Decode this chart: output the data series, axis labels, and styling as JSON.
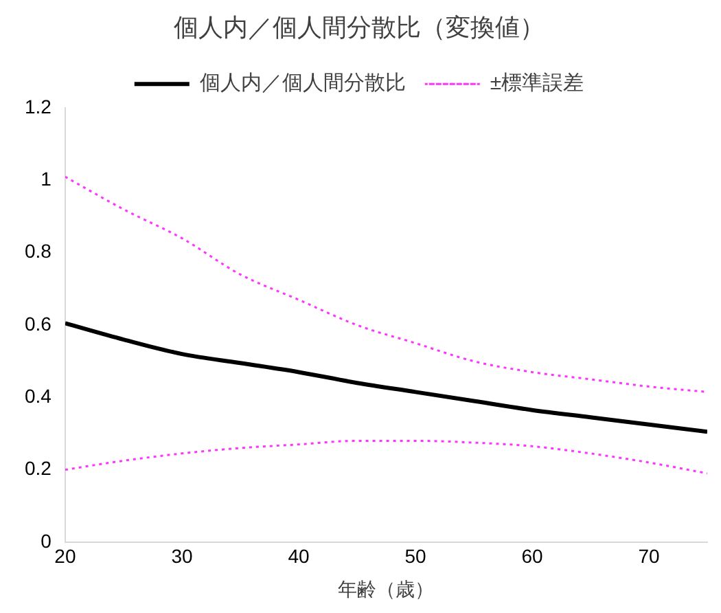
{
  "chart_data": {
    "type": "line",
    "title": "個人内／個人間分散比（変換値）",
    "xlabel": "年齢（歳）",
    "x": [
      20,
      25,
      30,
      35,
      40,
      45,
      50,
      55,
      60,
      65,
      70,
      75
    ],
    "series": [
      {
        "name": "個人内／個人間分散比",
        "color": "#000000",
        "line_style": "solid",
        "values": [
          0.605,
          0.56,
          0.52,
          0.495,
          0.47,
          0.44,
          0.415,
          0.39,
          0.365,
          0.345,
          0.325,
          0.305
        ]
      },
      {
        "name": "±標準誤差",
        "color": "#ff33ff",
        "line_style": "dotted",
        "values": [
          1.01,
          0.92,
          0.84,
          0.74,
          0.67,
          0.6,
          0.55,
          0.5,
          0.47,
          0.45,
          0.43,
          0.415
        ]
      },
      {
        "color": "#ff33ff",
        "line_style": "dotted",
        "values": [
          0.2,
          0.225,
          0.245,
          0.26,
          0.27,
          0.28,
          0.28,
          0.275,
          0.265,
          0.245,
          0.22,
          0.19
        ]
      }
    ],
    "xlim": [
      20,
      75
    ],
    "xticks": [
      20,
      30,
      40,
      50,
      60,
      70
    ],
    "ylim": [
      0,
      1.2
    ],
    "yticks": [
      0,
      0.2,
      0.4,
      0.6,
      0.8,
      1,
      1.2
    ],
    "grid": false,
    "legend": "top",
    "marker": "none"
  }
}
